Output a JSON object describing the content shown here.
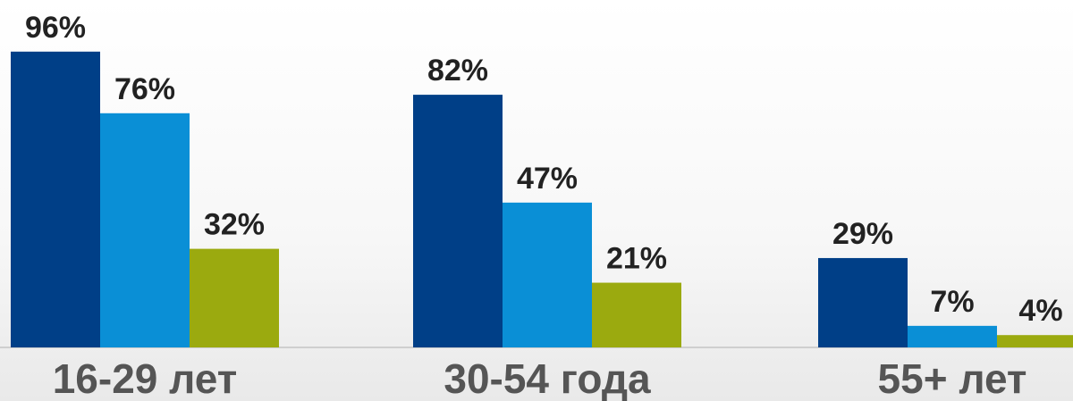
{
  "chart_data": {
    "type": "bar",
    "categories": [
      "16-29 лет",
      "30-54 года",
      "55+ лет"
    ],
    "series": [
      {
        "values": [
          96,
          82,
          29
        ],
        "color": "#003F87"
      },
      {
        "values": [
          76,
          47,
          7
        ],
        "color": "#0A8FD6"
      },
      {
        "values": [
          32,
          21,
          4
        ],
        "color": "#9BAA0F"
      }
    ],
    "value_labels": [
      [
        "96%",
        "82%",
        "29%"
      ],
      [
        "76%",
        "47%",
        "7%"
      ],
      [
        "32%",
        "21%",
        "4%"
      ]
    ],
    "ylim": [
      0,
      100
    ],
    "grid": false,
    "legend": "none"
  }
}
